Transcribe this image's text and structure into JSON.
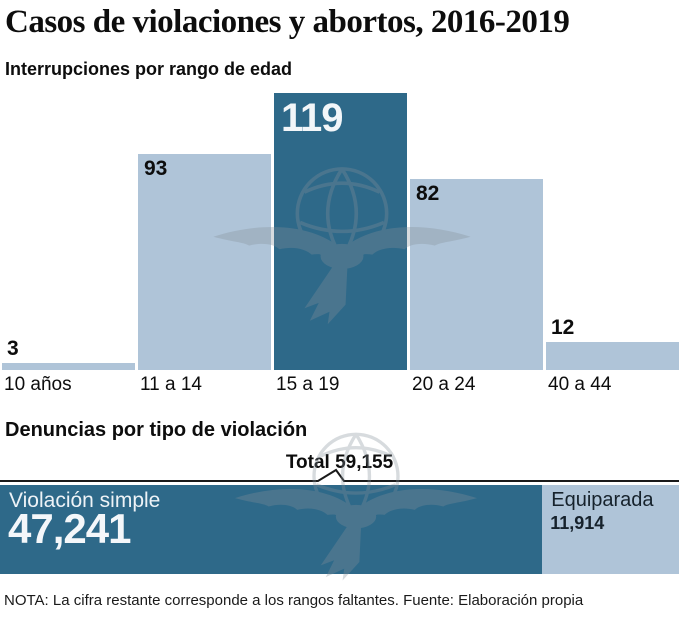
{
  "page": {
    "title": "Casos de violaciones y abortos, 2016-2019",
    "note": "NOTA: La cifra restante corresponde a los rangos faltantes. Fuente: Elaboración propia"
  },
  "colors": {
    "dark_blue": "#2e6989",
    "light_blue": "#afc4d8",
    "text": "#111111",
    "watermark_gray": "#85909a"
  },
  "watermark_icon": "eagle-globe-logo",
  "chart_data": [
    {
      "type": "bar",
      "title": "Interrupciones por rango de edad",
      "categories": [
        "10 años",
        "11 a 14",
        "15 a 19",
        "20 a 24",
        "40 a 44"
      ],
      "values": [
        3,
        93,
        119,
        82,
        12
      ],
      "ylim": [
        0,
        119
      ],
      "grid": false,
      "highlighted_category": "15 a 19",
      "bars": [
        {
          "category": "10 años",
          "value": 3,
          "label": "3",
          "label_position": "above",
          "highlight": false
        },
        {
          "category": "11 a 14",
          "value": 93,
          "label": "93",
          "label_position": "inside",
          "highlight": false
        },
        {
          "category": "15 a 19",
          "value": 119,
          "label": "119",
          "label_position": "inside",
          "highlight": true
        },
        {
          "category": "20 a 24",
          "value": 82,
          "label": "82",
          "label_position": "inside",
          "highlight": false
        },
        {
          "category": "40 a 44",
          "value": 12,
          "label": "12",
          "label_position": "above",
          "highlight": false
        }
      ]
    },
    {
      "type": "bar",
      "orientation": "horizontal-stacked",
      "title": "Denuncias por tipo de violación",
      "total": 59155,
      "total_label": "Total 59,155",
      "segments": [
        {
          "label": "Violación simple",
          "value": 47241,
          "value_label": "47,241",
          "color_role": "dark"
        },
        {
          "label": "Equiparada",
          "value": 11914,
          "value_label": "11,914",
          "color_role": "light"
        }
      ]
    }
  ]
}
